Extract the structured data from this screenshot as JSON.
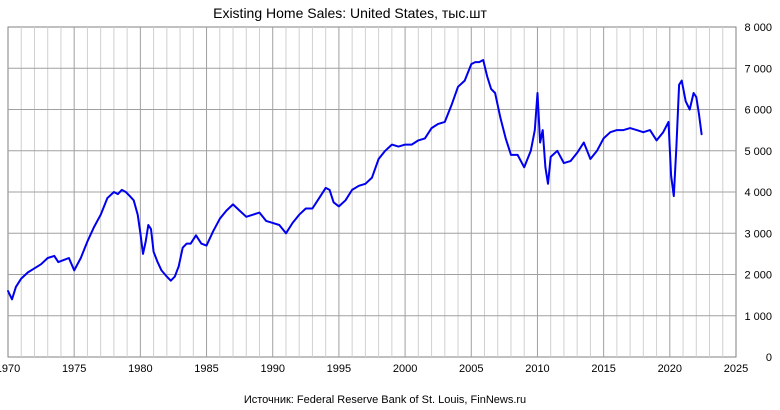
{
  "chart_data": {
    "type": "line",
    "title": "Existing Home Sales: United States, тыс.шт",
    "source": "Источник: Federal Reserve Bank of St. Louis, FinNews.ru",
    "xlim": [
      1970,
      2025
    ],
    "ylim": [
      0,
      8000
    ],
    "x_ticks": [
      1970,
      1975,
      1980,
      1985,
      1990,
      1995,
      2000,
      2005,
      2010,
      2015,
      2020,
      2025
    ],
    "x_tick_labels": [
      "1970",
      "1975",
      "1980",
      "1985",
      "1990",
      "1995",
      "2000",
      "2005",
      "2010",
      "2015",
      "2020",
      "2025"
    ],
    "y_ticks": [
      0,
      1000,
      2000,
      3000,
      4000,
      5000,
      6000,
      7000,
      8000
    ],
    "y_tick_labels": [
      "0",
      "1 000",
      "2 000",
      "3 000",
      "4 000",
      "5 000",
      "6 000",
      "7 000",
      "8 000"
    ],
    "y_axis_side": "right",
    "grid": true,
    "minor_x_grid_step": 1,
    "line_color": "#0000ee",
    "series": [
      {
        "x": [
          1970.0,
          1970.3,
          1970.6,
          1971.0,
          1971.5,
          1972.0,
          1972.5,
          1973.0,
          1973.5,
          1973.8,
          1974.2,
          1974.6,
          1975.0,
          1975.5,
          1976.0,
          1976.5,
          1977.0,
          1977.5,
          1978.0,
          1978.3,
          1978.6,
          1978.9,
          1979.2,
          1979.5,
          1979.8,
          1980.0,
          1980.2,
          1980.4,
          1980.6,
          1980.8,
          1981.0,
          1981.3,
          1981.6,
          1982.0,
          1982.3,
          1982.6,
          1982.9,
          1983.2,
          1983.5,
          1983.8,
          1984.2,
          1984.6,
          1985.0,
          1985.5,
          1986.0,
          1986.5,
          1987.0,
          1987.5,
          1988.0,
          1988.5,
          1989.0,
          1989.5,
          1990.0,
          1990.5,
          1991.0,
          1991.5,
          1992.0,
          1992.5,
          1993.0,
          1993.5,
          1994.0,
          1994.3,
          1994.6,
          1995.0,
          1995.5,
          1996.0,
          1996.5,
          1997.0,
          1997.5,
          1998.0,
          1998.5,
          1999.0,
          1999.5,
          2000.0,
          2000.5,
          2001.0,
          2001.5,
          2002.0,
          2002.5,
          2003.0,
          2003.5,
          2004.0,
          2004.5,
          2005.0,
          2005.3,
          2005.6,
          2005.9,
          2006.2,
          2006.5,
          2006.8,
          2007.2,
          2007.6,
          2008.0,
          2008.5,
          2009.0,
          2009.5,
          2009.8,
          2010.0,
          2010.2,
          2010.4,
          2010.6,
          2010.8,
          2011.0,
          2011.5,
          2012.0,
          2012.5,
          2013.0,
          2013.5,
          2014.0,
          2014.5,
          2015.0,
          2015.5,
          2016.0,
          2016.5,
          2017.0,
          2017.5,
          2018.0,
          2018.5,
          2019.0,
          2019.5,
          2019.9,
          2020.1,
          2020.3,
          2020.5,
          2020.7,
          2020.9,
          2021.2,
          2021.5,
          2021.8,
          2022.0,
          2022.2,
          2022.4
        ],
        "y": [
          1600,
          1400,
          1700,
          1900,
          2050,
          2150,
          2250,
          2400,
          2450,
          2300,
          2350,
          2400,
          2100,
          2400,
          2800,
          3150,
          3450,
          3850,
          4000,
          3950,
          4050,
          4000,
          3900,
          3800,
          3450,
          3000,
          2500,
          2800,
          3200,
          3100,
          2550,
          2300,
          2100,
          1950,
          1850,
          1950,
          2200,
          2650,
          2750,
          2750,
          2950,
          2750,
          2700,
          3050,
          3350,
          3550,
          3700,
          3550,
          3400,
          3450,
          3500,
          3300,
          3250,
          3200,
          3000,
          3250,
          3450,
          3600,
          3600,
          3850,
          4100,
          4050,
          3750,
          3650,
          3800,
          4050,
          4150,
          4200,
          4350,
          4800,
          5000,
          5150,
          5100,
          5150,
          5150,
          5250,
          5300,
          5550,
          5650,
          5700,
          6100,
          6550,
          6700,
          7100,
          7150,
          7150,
          7200,
          6800,
          6500,
          6400,
          5800,
          5300,
          4900,
          4900,
          4600,
          5000,
          5500,
          6400,
          5200,
          5500,
          4600,
          4200,
          4850,
          5000,
          4700,
          4750,
          4950,
          5200,
          4800,
          5000,
          5300,
          5450,
          5500,
          5500,
          5550,
          5500,
          5450,
          5500,
          5250,
          5450,
          5700,
          4400,
          3900,
          5100,
          6600,
          6700,
          6200,
          6000,
          6400,
          6300,
          5900,
          5400
        ]
      }
    ]
  }
}
